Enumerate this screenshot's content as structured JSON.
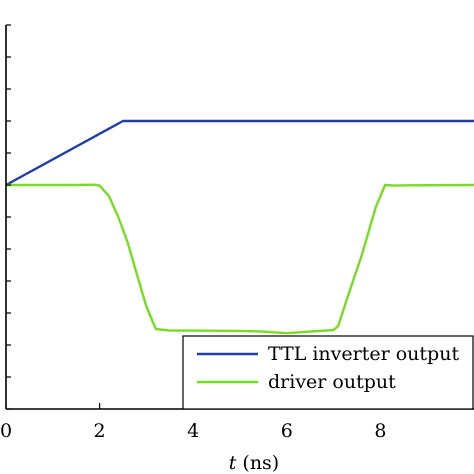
{
  "chart_data": {
    "type": "line",
    "xlabel_var": "t",
    "xlabel_unit": "(ns)",
    "xlim": [
      0,
      10
    ],
    "ylim": [
      -0.1,
      1.1
    ],
    "x_ticks": [
      "0",
      "2",
      "4",
      "6",
      "8"
    ],
    "grid": false,
    "legend_position": "bottom-right",
    "series": [
      {
        "name": "TTL inverter output",
        "color": "#1f3ea3",
        "x": [
          0,
          2.5,
          10
        ],
        "y": [
          0.6,
          0.8,
          0.8
        ]
      },
      {
        "name": "driver output",
        "color": "#77dd22",
        "x": [
          0,
          1.5,
          1.9,
          2.0,
          2.2,
          2.4,
          2.6,
          2.8,
          3.0,
          3.2,
          3.5,
          4.0,
          5.0,
          5.5,
          6.0,
          6.5,
          7.0,
          7.1,
          7.3,
          7.6,
          7.9,
          8.1,
          8.3,
          8.6,
          10
        ],
        "y": [
          0.6,
          0.6,
          0.601,
          0.598,
          0.565,
          0.5,
          0.42,
          0.32,
          0.22,
          0.15,
          0.145,
          0.145,
          0.144,
          0.142,
          0.137,
          0.142,
          0.147,
          0.16,
          0.25,
          0.38,
          0.53,
          0.6,
          0.598,
          0.599,
          0.6
        ]
      }
    ]
  }
}
